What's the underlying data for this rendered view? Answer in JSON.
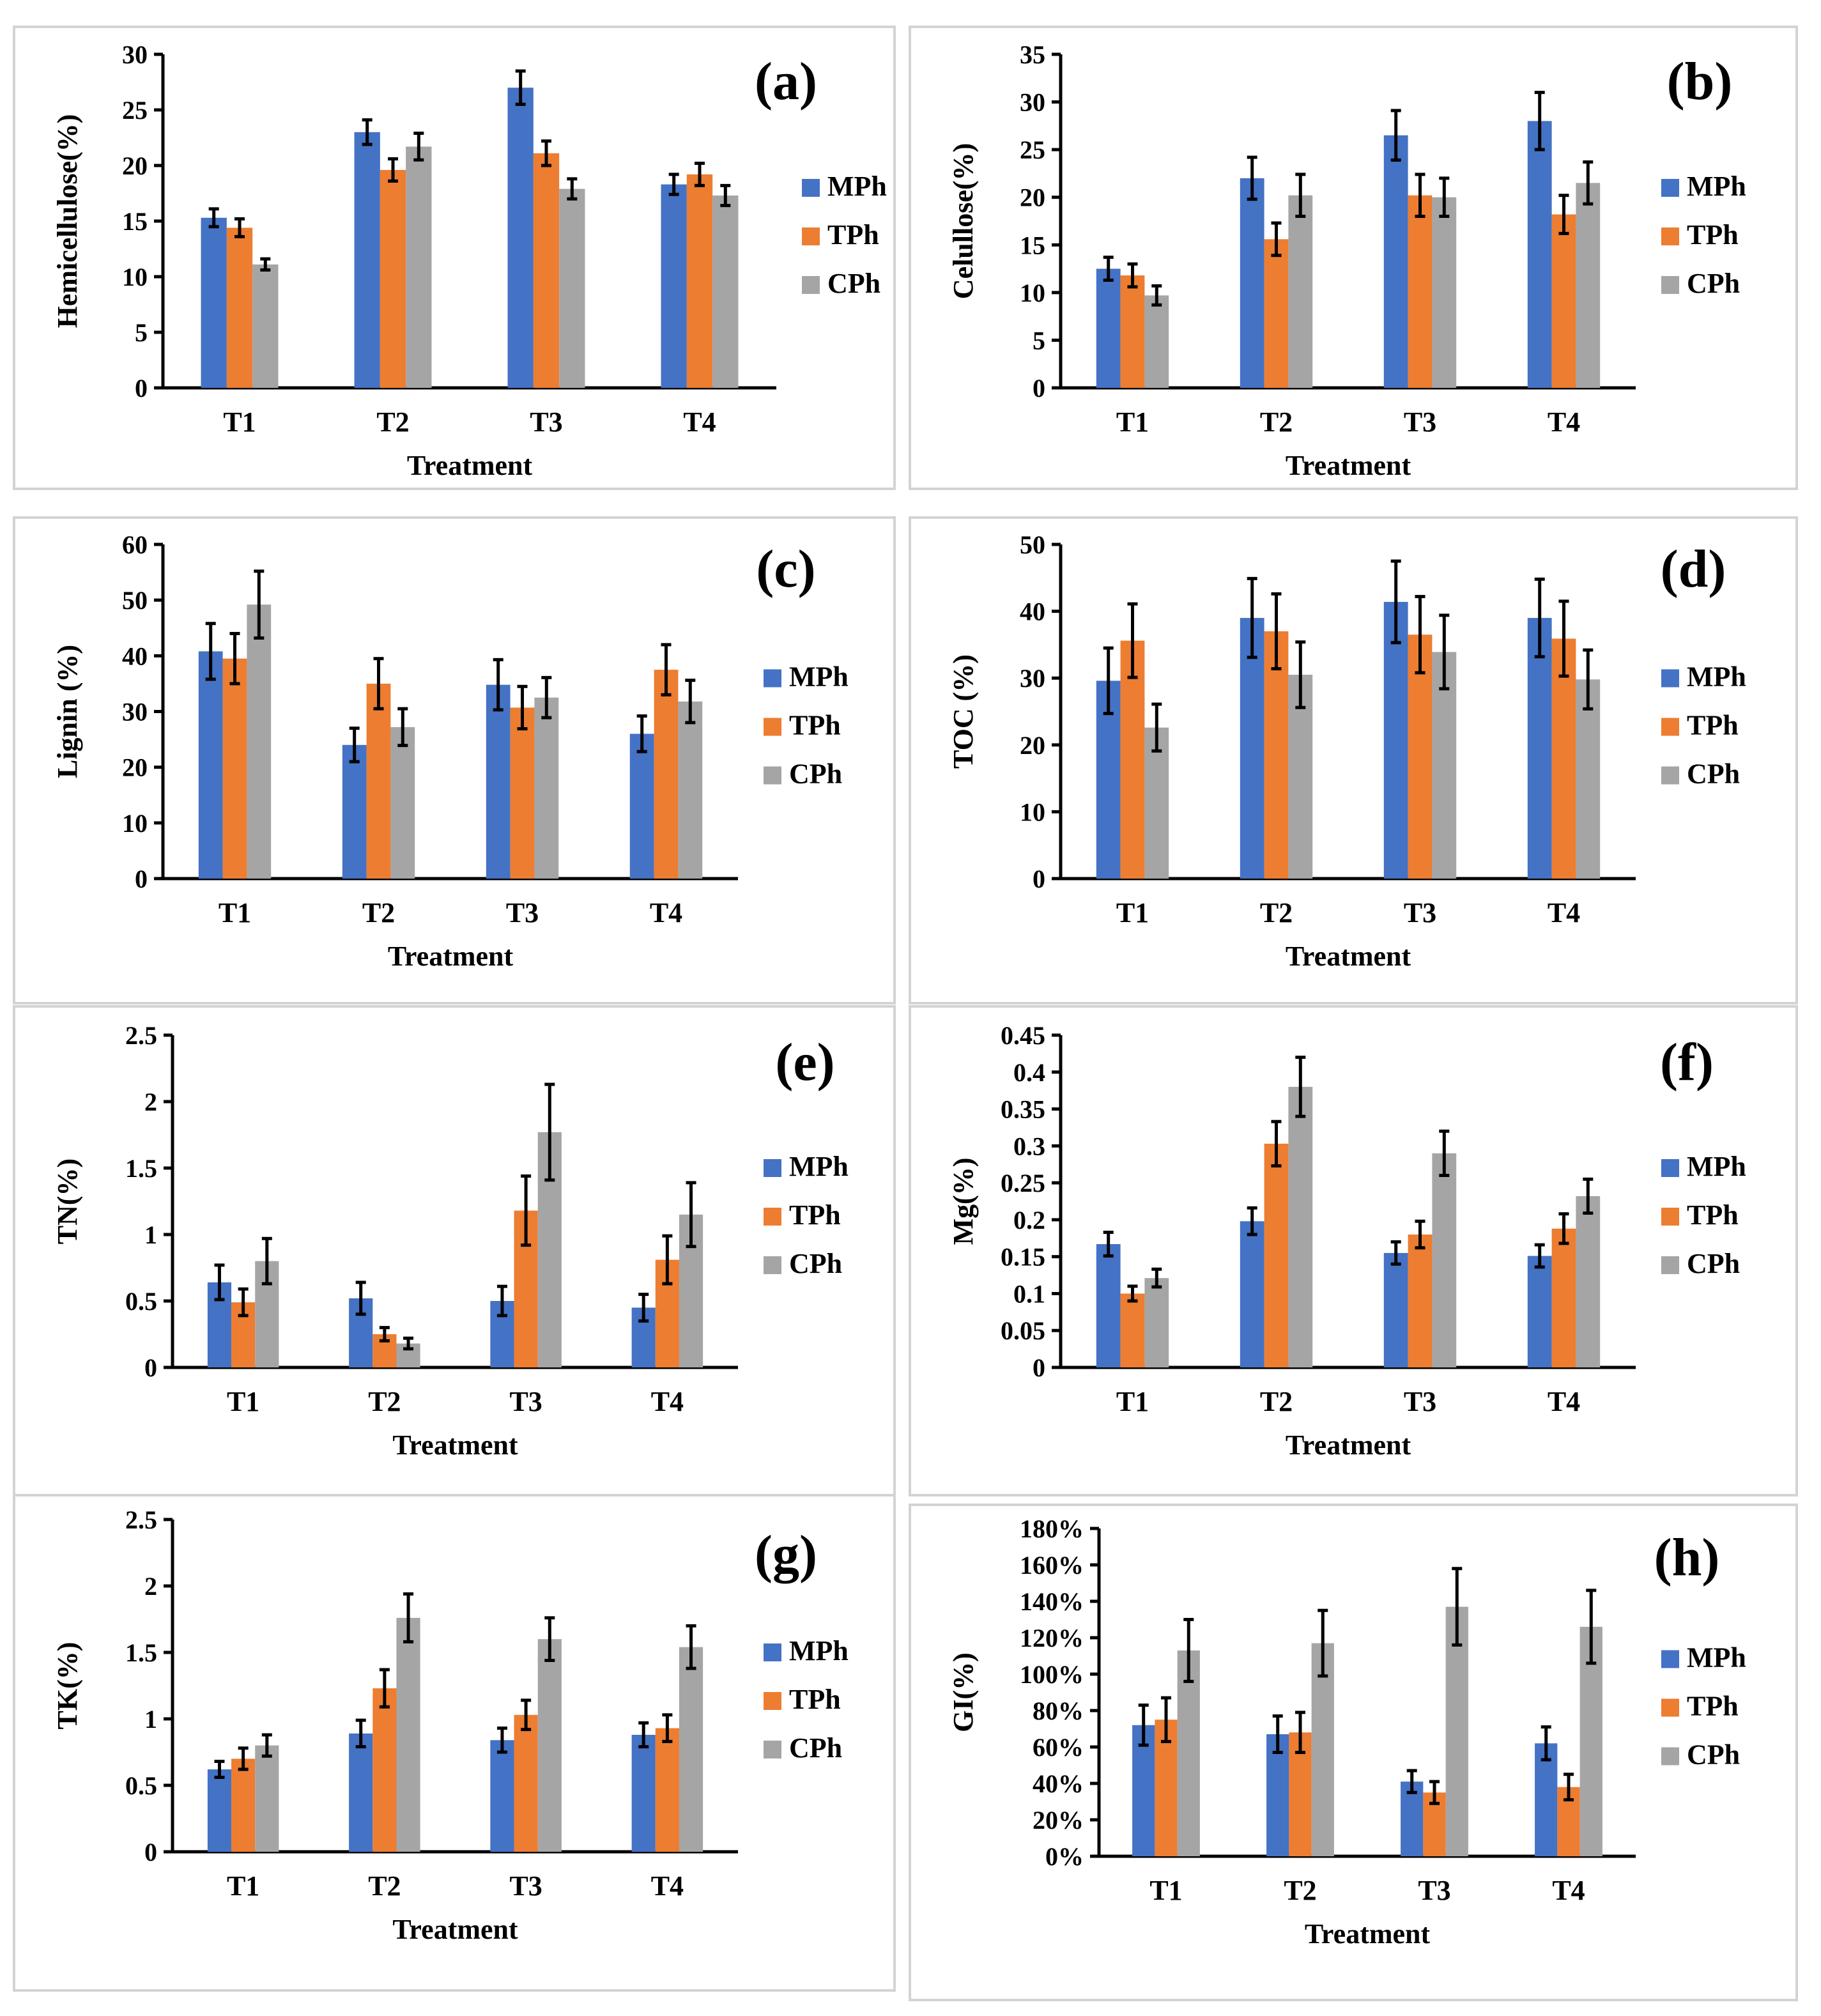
{
  "figure": {
    "x_title": "Treatment",
    "categories": [
      "T1",
      "T2",
      "T3",
      "T4"
    ],
    "legend": [
      "MPh",
      "TPh",
      "CPh"
    ],
    "colors": {
      "MPh": "#4472C4",
      "TPh": "#ED7D31",
      "CPh": "#A5A5A5"
    }
  },
  "chart_data": [
    {
      "panel": "(a)",
      "type": "bar",
      "ylabel": "Hemicellulose(%)",
      "xlabel": "Treatment",
      "categories": [
        "T1",
        "T2",
        "T3",
        "T4"
      ],
      "ylim": [
        0,
        30
      ],
      "yticks": [
        "0",
        "5",
        "10",
        "15",
        "20",
        "25",
        "30"
      ],
      "series": [
        {
          "name": "MPh",
          "values": [
            15.3,
            23.0,
            27.0,
            18.3
          ],
          "errors": [
            0.8,
            1.1,
            1.5,
            0.9
          ]
        },
        {
          "name": "TPh",
          "values": [
            14.4,
            19.6,
            21.1,
            19.2
          ],
          "errors": [
            0.8,
            1.0,
            1.1,
            1.0
          ]
        },
        {
          "name": "CPh",
          "values": [
            11.1,
            21.7,
            17.9,
            17.3
          ],
          "errors": [
            0.5,
            1.2,
            0.9,
            0.9
          ]
        }
      ]
    },
    {
      "panel": "(b)",
      "type": "bar",
      "ylabel": "Celullose(%)",
      "xlabel": "Treatment",
      "categories": [
        "T1",
        "T2",
        "T3",
        "T4"
      ],
      "ylim": [
        0,
        35
      ],
      "yticks": [
        "0",
        "5",
        "10",
        "15",
        "20",
        "25",
        "30",
        "35"
      ],
      "series": [
        {
          "name": "MPh",
          "values": [
            12.5,
            22.0,
            26.5,
            28.0
          ],
          "errors": [
            1.2,
            2.2,
            2.6,
            3.0
          ]
        },
        {
          "name": "TPh",
          "values": [
            11.8,
            15.6,
            20.2,
            18.2
          ],
          "errors": [
            1.2,
            1.7,
            2.2,
            2.0
          ]
        },
        {
          "name": "CPh",
          "values": [
            9.7,
            20.2,
            20.0,
            21.5
          ],
          "errors": [
            1.0,
            2.2,
            2.0,
            2.2
          ]
        }
      ]
    },
    {
      "panel": "(c)",
      "type": "bar",
      "ylabel": "Lignin (%)",
      "xlabel": "Treatment",
      "categories": [
        "T1",
        "T2",
        "T3",
        "T4"
      ],
      "ylim": [
        0,
        60
      ],
      "yticks": [
        "0",
        "10",
        "20",
        "30",
        "40",
        "50",
        "60"
      ],
      "series": [
        {
          "name": "MPh",
          "values": [
            40.8,
            24.0,
            34.8,
            26.0
          ],
          "errors": [
            5.0,
            3.0,
            4.5,
            3.2
          ]
        },
        {
          "name": "TPh",
          "values": [
            39.5,
            35.0,
            30.7,
            37.5
          ],
          "errors": [
            4.5,
            4.5,
            3.8,
            4.5
          ]
        },
        {
          "name": "CPh",
          "values": [
            49.2,
            27.2,
            32.5,
            31.8
          ],
          "errors": [
            6.0,
            3.3,
            3.6,
            3.8
          ]
        }
      ]
    },
    {
      "panel": "(d)",
      "type": "bar",
      "ylabel": "TOC (%)",
      "xlabel": "Treatment",
      "categories": [
        "T1",
        "T2",
        "T3",
        "T4"
      ],
      "ylim": [
        0,
        50
      ],
      "yticks": [
        "0",
        "10",
        "20",
        "30",
        "40",
        "50"
      ],
      "series": [
        {
          "name": "MPh",
          "values": [
            29.6,
            39.0,
            41.4,
            39.0
          ],
          "errors": [
            4.9,
            5.9,
            6.1,
            5.8
          ]
        },
        {
          "name": "TPh",
          "values": [
            35.6,
            37.0,
            36.5,
            35.9
          ],
          "errors": [
            5.5,
            5.6,
            5.7,
            5.6
          ]
        },
        {
          "name": "CPh",
          "values": [
            22.6,
            30.5,
            33.9,
            29.8
          ],
          "errors": [
            3.5,
            4.9,
            5.5,
            4.4
          ]
        }
      ]
    },
    {
      "panel": "(e)",
      "type": "bar",
      "ylabel": "TN(%)",
      "xlabel": "Treatment",
      "categories": [
        "T1",
        "T2",
        "T3",
        "T4"
      ],
      "ylim": [
        0,
        2.5
      ],
      "yticks": [
        "0",
        "0.5",
        "1",
        "1.5",
        "2",
        "2.5"
      ],
      "series": [
        {
          "name": "MPh",
          "values": [
            0.64,
            0.52,
            0.5,
            0.45
          ],
          "errors": [
            0.13,
            0.12,
            0.11,
            0.1
          ]
        },
        {
          "name": "TPh",
          "values": [
            0.49,
            0.25,
            1.18,
            0.81
          ],
          "errors": [
            0.1,
            0.05,
            0.26,
            0.18
          ]
        },
        {
          "name": "CPh",
          "values": [
            0.8,
            0.18,
            1.77,
            1.15
          ],
          "errors": [
            0.17,
            0.04,
            0.36,
            0.24
          ]
        }
      ]
    },
    {
      "panel": "(f)",
      "type": "bar",
      "ylabel": "Mg(%)",
      "xlabel": "Treatment",
      "categories": [
        "T1",
        "T2",
        "T3",
        "T4"
      ],
      "ylim": [
        0,
        0.45
      ],
      "yticks": [
        "0",
        "0.05",
        "0.1",
        "0.15",
        "0.2",
        "0.25",
        "0.3",
        "0.35",
        "0.4",
        "0.45"
      ],
      "series": [
        {
          "name": "MPh",
          "values": [
            0.167,
            0.198,
            0.155,
            0.151
          ],
          "errors": [
            0.016,
            0.018,
            0.015,
            0.015
          ]
        },
        {
          "name": "TPh",
          "values": [
            0.1,
            0.303,
            0.18,
            0.188
          ],
          "errors": [
            0.01,
            0.03,
            0.018,
            0.02
          ]
        },
        {
          "name": "CPh",
          "values": [
            0.121,
            0.38,
            0.29,
            0.232
          ],
          "errors": [
            0.012,
            0.04,
            0.03,
            0.023
          ]
        }
      ]
    },
    {
      "panel": "(g)",
      "type": "bar",
      "ylabel": "TK(%)",
      "xlabel": "Treatment",
      "categories": [
        "T1",
        "T2",
        "T3",
        "T4"
      ],
      "ylim": [
        0,
        2.5
      ],
      "yticks": [
        "0",
        "0.5",
        "1",
        "1.5",
        "2",
        "2.5"
      ],
      "series": [
        {
          "name": "MPh",
          "values": [
            0.62,
            0.89,
            0.84,
            0.88
          ],
          "errors": [
            0.06,
            0.1,
            0.09,
            0.09
          ]
        },
        {
          "name": "TPh",
          "values": [
            0.7,
            1.23,
            1.03,
            0.93
          ],
          "errors": [
            0.08,
            0.14,
            0.11,
            0.1
          ]
        },
        {
          "name": "CPh",
          "values": [
            0.8,
            1.76,
            1.6,
            1.54
          ],
          "errors": [
            0.08,
            0.18,
            0.16,
            0.16
          ]
        }
      ]
    },
    {
      "panel": "(h)",
      "type": "bar",
      "ylabel": "GI(%)",
      "xlabel": "Treatment",
      "categories": [
        "T1",
        "T2",
        "T3",
        "T4"
      ],
      "ylim": [
        0,
        180
      ],
      "yticks": [
        "0%",
        "20%",
        "40%",
        "60%",
        "80%",
        "100%",
        "120%",
        "140%",
        "160%",
        "180%"
      ],
      "series": [
        {
          "name": "MPh",
          "values": [
            72,
            67,
            41,
            62
          ],
          "errors": [
            11,
            10,
            6,
            9
          ]
        },
        {
          "name": "TPh",
          "values": [
            75,
            68,
            35,
            38
          ],
          "errors": [
            12,
            11,
            6,
            7
          ]
        },
        {
          "name": "CPh",
          "values": [
            113,
            117,
            137,
            126
          ],
          "errors": [
            17,
            18,
            21,
            20
          ]
        }
      ]
    }
  ]
}
